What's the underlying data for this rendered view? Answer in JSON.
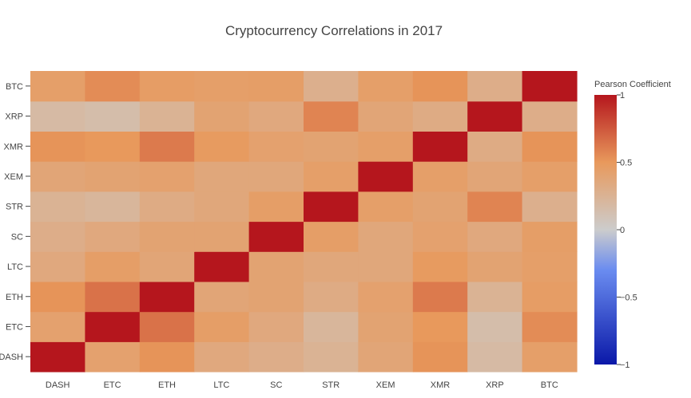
{
  "chart_data": {
    "type": "heatmap",
    "title": "Cryptocurrency Correlations in 2017",
    "x_categories": [
      "DASH",
      "ETC",
      "ETH",
      "LTC",
      "SC",
      "STR",
      "XEM",
      "XMR",
      "XRP",
      "BTC"
    ],
    "y_categories": [
      "DASH",
      "ETC",
      "ETH",
      "LTC",
      "SC",
      "STR",
      "XEM",
      "XMR",
      "XRP",
      "BTC"
    ],
    "values": [
      [
        1.0,
        0.42,
        0.52,
        0.35,
        0.3,
        0.25,
        0.38,
        0.52,
        0.18,
        0.44
      ],
      [
        0.42,
        1.0,
        0.65,
        0.45,
        0.35,
        0.22,
        0.4,
        0.5,
        0.15,
        0.55
      ],
      [
        0.52,
        0.65,
        1.0,
        0.38,
        0.4,
        0.32,
        0.42,
        0.62,
        0.25,
        0.46
      ],
      [
        0.35,
        0.45,
        0.38,
        1.0,
        0.4,
        0.36,
        0.36,
        0.48,
        0.4,
        0.44
      ],
      [
        0.3,
        0.35,
        0.4,
        0.4,
        1.0,
        0.45,
        0.36,
        0.42,
        0.35,
        0.45
      ],
      [
        0.25,
        0.22,
        0.32,
        0.36,
        0.45,
        1.0,
        0.44,
        0.4,
        0.58,
        0.28
      ],
      [
        0.38,
        0.4,
        0.42,
        0.36,
        0.36,
        0.44,
        1.0,
        0.44,
        0.38,
        0.44
      ],
      [
        0.52,
        0.5,
        0.62,
        0.48,
        0.42,
        0.4,
        0.44,
        1.0,
        0.32,
        0.52
      ],
      [
        0.18,
        0.15,
        0.25,
        0.4,
        0.35,
        0.58,
        0.38,
        0.32,
        1.0,
        0.3
      ],
      [
        0.44,
        0.55,
        0.46,
        0.44,
        0.45,
        0.28,
        0.44,
        0.52,
        0.3,
        1.0
      ]
    ],
    "zmin": -1,
    "zmax": 1,
    "colorbar": {
      "title": "Pearson Coefficient",
      "ticks": [
        1,
        0.5,
        0,
        -0.5,
        -1
      ],
      "tick_labels": [
        "1",
        "0.5",
        "0",
        "−0.5",
        "−1"
      ]
    },
    "colorscale": [
      [
        0.0,
        "#0a18a8"
      ],
      [
        0.35,
        "#6a8cf0"
      ],
      [
        0.5,
        "#cccccc"
      ],
      [
        0.75,
        "#e8995c"
      ],
      [
        1.0,
        "#b5161d"
      ]
    ]
  }
}
